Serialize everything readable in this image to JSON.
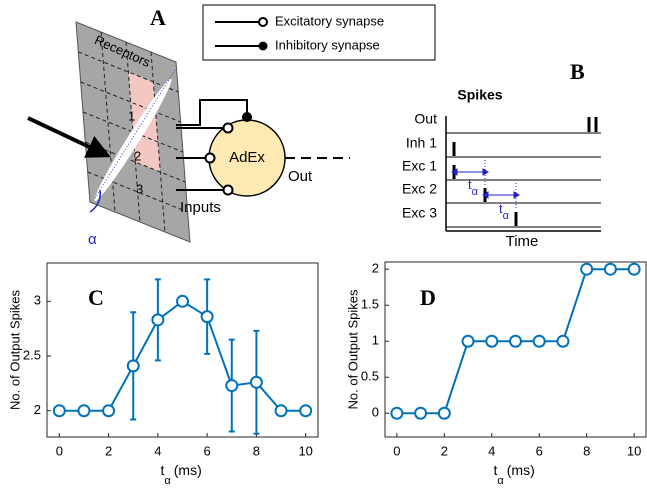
{
  "panel_labels": [
    "A",
    "B",
    "C",
    "D"
  ],
  "legend": [
    "Excitatory synapse",
    "Inhibitory synapse"
  ],
  "diagram_a": {
    "title": "Receptors",
    "cells": [
      "1",
      "2",
      "3"
    ],
    "angle": "α",
    "neuron": "AdEx",
    "output": "Out",
    "inputs": "Inputs"
  },
  "diagram_b": {
    "title": "Spikes",
    "rows": [
      "Out",
      "Inh 1",
      "Exc 1",
      "Exc 2",
      "Exc 3"
    ],
    "xlabel": "Time",
    "delay": [
      "t",
      "α"
    ]
  },
  "chart_data": [
    {
      "type": "line",
      "ylabel": "No. of Output Spikes",
      "xlabel": [
        "t",
        "α",
        "(ms)"
      ],
      "x": [
        0,
        1,
        2,
        3,
        4,
        5,
        6,
        7,
        8,
        9,
        10
      ],
      "series": [
        {
          "color": "#0072bd",
          "values": [
            2,
            2,
            2,
            2.41,
            2.83,
            3.0,
            2.86,
            2.23,
            2.26,
            2,
            2
          ],
          "errors": [
            null,
            null,
            null,
            0.49,
            0.37,
            null,
            0.34,
            0.42,
            0.47,
            null,
            null
          ]
        }
      ],
      "xlim": [
        -0.5,
        10.5
      ],
      "ylim": [
        1.76,
        3.35
      ],
      "xticks": [
        0,
        2,
        4,
        6,
        8,
        10
      ],
      "yticks": [
        2,
        2.5,
        3
      ]
    },
    {
      "type": "line",
      "ylabel": "No. of Output Spikes",
      "xlabel": [
        "t",
        "α",
        "(ms)"
      ],
      "x": [
        0,
        1,
        2,
        3,
        4,
        5,
        6,
        7,
        8,
        9,
        10
      ],
      "series": [
        {
          "color": "#0072bd",
          "values": [
            0,
            0,
            0,
            1,
            1,
            1,
            1,
            1,
            2,
            2,
            2
          ]
        }
      ],
      "xlim": [
        -0.5,
        10.5
      ],
      "ylim": [
        -0.33,
        2.1
      ],
      "xticks": [
        0,
        2,
        4,
        6,
        8,
        10
      ],
      "yticks": [
        0,
        0.5,
        1,
        1.5,
        2
      ]
    }
  ]
}
